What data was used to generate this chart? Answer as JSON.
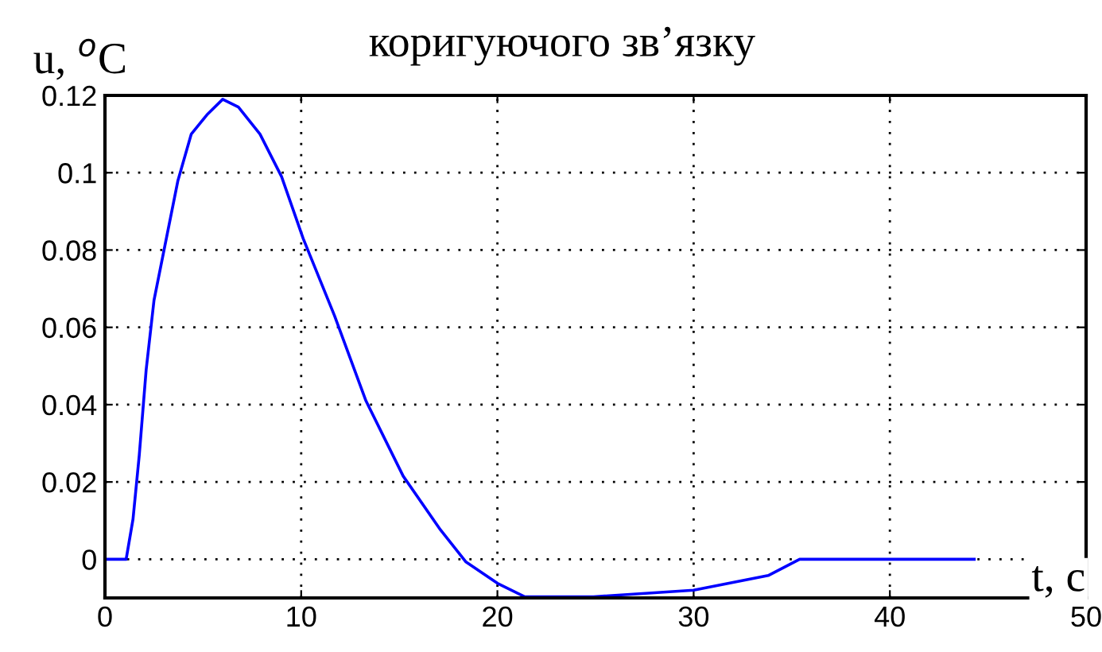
{
  "chart_data": {
    "type": "line",
    "title": "коригуючого зв’язку",
    "xlabel": "t, c",
    "ylabel": "u, $^{o}$C",
    "x": [
      0,
      1.08,
      1.43,
      1.75,
      2.1,
      2.5,
      3.05,
      3.72,
      4.4,
      5.2,
      6.0,
      6.8,
      7.9,
      9.0,
      10.1,
      11.7,
      13.3,
      15.2,
      17.1,
      18.4,
      20.0,
      21.4,
      24.9,
      30.0,
      33.8,
      35.4,
      44.3
    ],
    "series": [
      {
        "color": "#0000ff",
        "values": [
          0,
          0,
          0.0104,
          0.027,
          0.049,
          0.067,
          0.081,
          0.098,
          0.11,
          0.115,
          0.119,
          0.117,
          0.11,
          0.099,
          0.083,
          0.063,
          0.041,
          0.0215,
          0.0076,
          -0.0007,
          -0.0062,
          -0.0097,
          -0.0097,
          -0.008,
          -0.0042,
          0,
          0
        ]
      }
    ],
    "xlim": [
      0,
      50
    ],
    "xticks": [
      0,
      10,
      20,
      30,
      40,
      50
    ],
    "ylim": [
      -0.01,
      0.12
    ],
    "yticks": [
      0,
      0.02,
      0.04,
      0.06,
      0.08,
      0.1,
      0.12
    ],
    "grid": true,
    "line_style": "solid",
    "marker": "none",
    "legend": false
  }
}
